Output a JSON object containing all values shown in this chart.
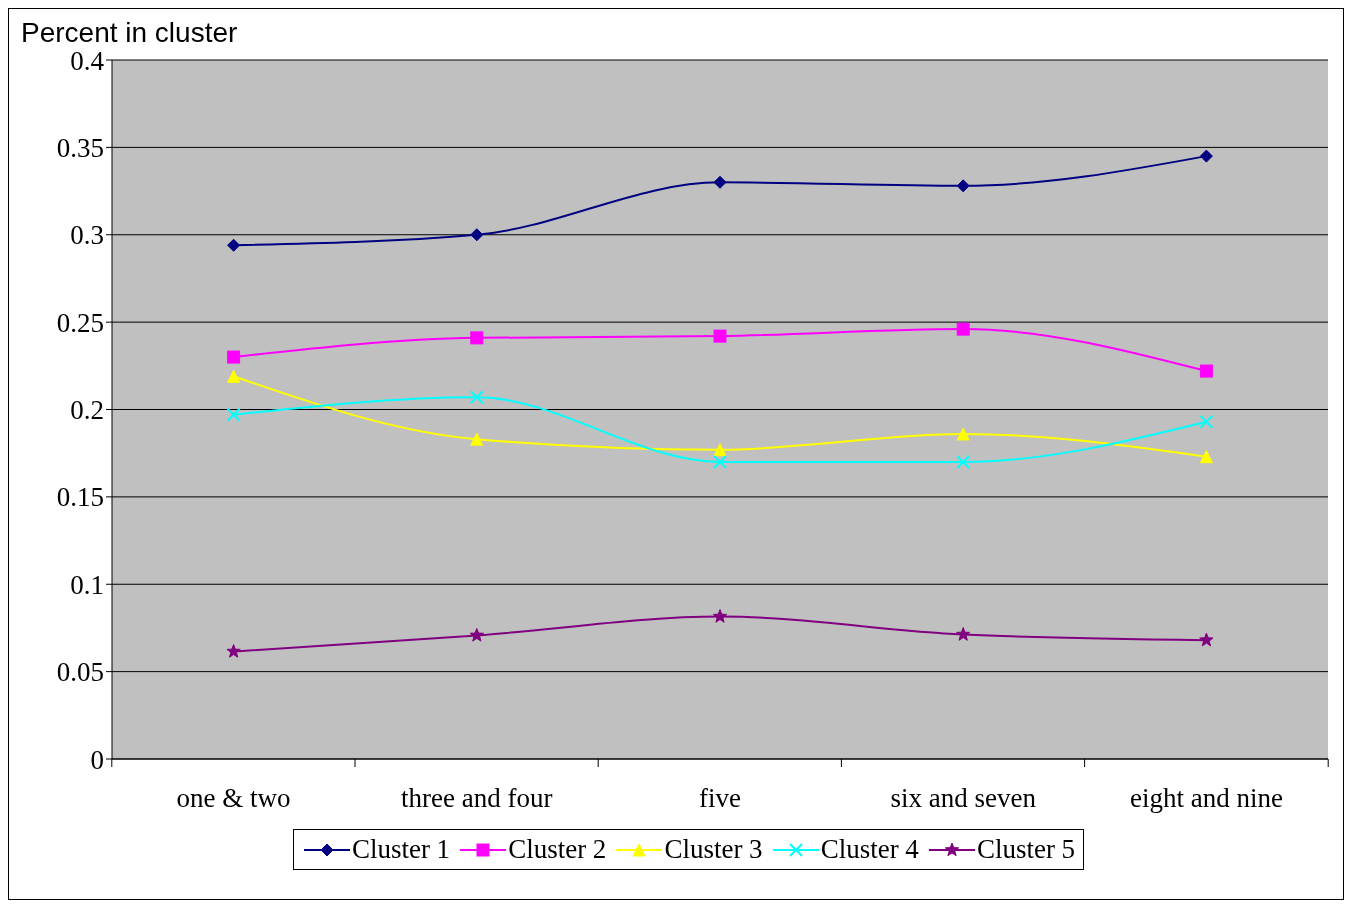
{
  "chart_data": {
    "type": "line",
    "ylabel": "Percent in cluster",
    "categories": [
      "one & two",
      "three and four",
      "five",
      "six and seven",
      "eight and nine"
    ],
    "ylim": [
      0,
      0.4
    ],
    "yticks": [
      0,
      0.05,
      0.1,
      0.15,
      0.2,
      0.25,
      0.3,
      0.35,
      0.4
    ],
    "grid": "y",
    "legend": "bottom",
    "line_style": "solid",
    "series": [
      {
        "name": "Cluster 1",
        "color": "#000080",
        "marker": "diamond",
        "values": [
          0.294,
          0.3,
          0.33,
          0.328,
          0.345
        ]
      },
      {
        "name": "Cluster 2",
        "color": "#ff00ff",
        "marker": "square",
        "values": [
          0.23,
          0.241,
          0.242,
          0.246,
          0.222
        ]
      },
      {
        "name": "Cluster 3",
        "color": "#ffff00",
        "marker": "triangle",
        "values": [
          0.219,
          0.183,
          0.177,
          0.186,
          0.173
        ]
      },
      {
        "name": "Cluster 4",
        "color": "#00ffff",
        "marker": "cross",
        "values": [
          0.197,
          0.207,
          0.17,
          0.17,
          0.193
        ]
      },
      {
        "name": "Cluster 5",
        "color": "#800080",
        "marker": "star",
        "values": [
          0.0615,
          0.0707,
          0.0815,
          0.0712,
          0.068
        ]
      }
    ]
  }
}
